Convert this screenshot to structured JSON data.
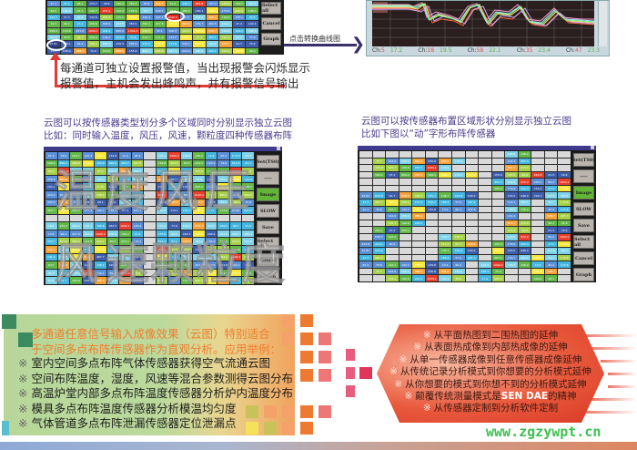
{
  "top_panel": {
    "alarm_note_lines": [
      "每通道可独立设置报警值，当出现报警会闪烁显示",
      "报警值，主机会发出蜂鸣声，并有报警信号输出"
    ],
    "link_text": "点击转换曲线图",
    "buttons": [
      "Select all",
      "Cancel",
      "Graph"
    ],
    "highlighted_cells": [
      "1040.2",
      "25.8C"
    ],
    "grid_values": [
      [
        "61.3",
        "97.1",
        "98.1",
        "105.7",
        "38.8",
        "299.4",
        "352.3",
        "78.8",
        "926.4",
        "31.4",
        "136.7",
        "964.8",
        "157.4",
        "148.8",
        "194.1",
        "252.9"
      ],
      [
        "63.5",
        "199.9",
        "61.3",
        "240.7",
        "972.2",
        "142.3",
        "195.9",
        "73.7",
        "640.2",
        "18.4",
        "185.4",
        "240.1",
        "798.4",
        "179.6",
        "164.6",
        "168.0"
      ],
      [
        "132.7",
        "57.4",
        "89.2",
        "139.8",
        "203.3",
        "105.2",
        "734.3",
        "436.4",
        "447.1",
        "1040.2",
        "13.4",
        "254.6",
        "886.9",
        "193.0",
        "135.1",
        "93.4"
      ],
      [
        "79.3",
        "96.4",
        "27.2",
        "256.8",
        "648.0",
        "199.8",
        "363.5",
        "390.1",
        "437.6",
        "774.6",
        "905.0",
        "209.7",
        "262.5",
        "119.1",
        "97.2",
        "192.4"
      ],
      [
        "258.4",
        "179.6",
        "427.6",
        "1009.1",
        "204.1",
        "400.0",
        "1099.2",
        "636.5",
        "55.1",
        "300.5",
        "129.2",
        "798.6",
        "930.3",
        "106.8",
        "194.0",
        "296.3"
      ],
      [
        "124.8",
        "58.6",
        "94.7",
        "308.4",
        "136.2",
        "424.2",
        "75.6",
        "424.1",
        "171.4",
        "173.6",
        "808.4",
        "13.4",
        "303.1",
        "101.4",
        "80.5",
        "77.6"
      ],
      [
        "25.8C",
        "179.1",
        "95.4",
        "296.2",
        "605.5",
        "229.3",
        "595.9",
        "625.6",
        "737.3",
        "173.6",
        "549.7",
        "807.1",
        "123.2",
        "873.7",
        "64.7",
        "75.6"
      ],
      [
        "47.3",
        "238.9",
        "928.7",
        "74.9",
        "473.0",
        "868.5",
        "155.6",
        "463.7",
        "290.8",
        "467.7",
        "512.4",
        "309.5",
        "325.1",
        "123.2",
        "720.6",
        "96.0"
      ]
    ]
  },
  "curve_chart": {
    "footer": [
      {
        "label": "Ch:",
        "ch": "5",
        "value": "17.2"
      },
      {
        "label": "Ch:",
        "ch": "18",
        "value": "19.5"
      },
      {
        "label": "Ch:",
        "ch": "58",
        "value": "22.1"
      },
      {
        "label": "Ch:",
        "ch": "35",
        "value": "23.4"
      },
      {
        "label": "Ch:",
        "ch": "47",
        "value": "23.3"
      }
    ],
    "y_ticks": [
      "25.0",
      "15.0",
      "5.0",
      "-5.0",
      "-15.0"
    ]
  },
  "left_cloud": {
    "title_lines": [
      "云图可以按传感器类型划分多个区域同时分别显示独立云图",
      "比如：同时输入温度，风压，风速，颗粒度四种传感器布阵"
    ],
    "watermarks": [
      "温度",
      "风压",
      "风速",
      "颗粒度"
    ],
    "buttons": [
      "Set(TS0)",
      "----",
      "Image",
      "SLOW",
      "Save",
      "Select all",
      "Cancel",
      "Graph"
    ]
  },
  "right_cloud": {
    "title_lines": [
      "云图可以按传感器布置区域形状分别显示独立云图",
      "比如下图以“动”字形布阵传感器"
    ],
    "buttons": [
      "Set(TS0)",
      "----",
      "Image",
      "SLOW",
      "Save",
      "Select all",
      "Cancel",
      "Graph"
    ]
  },
  "applications": {
    "heading_lines": [
      "多通道任意信号输入成像效果（云图）特别适合",
      "于空间多点布阵传感器作为直观分析。应用举例："
    ],
    "mark": "※",
    "items": [
      "室内空间多点布阵气体传感器获得空气流通云图",
      "空间布阵温度，湿度，风速等混合参数测得云图分布",
      "高温炉堂内部多点布阵温度传感器分析炉内温度分布",
      "模具多点布阵温度传感器分析模温均匀度",
      "气体管道多点布阵泄漏传感器定位泄漏点"
    ]
  },
  "features": {
    "mark": "※",
    "items": [
      {
        "pre": "从平面热图到二围热图的延伸",
        "brand": "",
        "post": ""
      },
      {
        "pre": "从表面热成像到内部热成像的延伸",
        "brand": "",
        "post": ""
      },
      {
        "pre": "从单一传感器成像到任意传感器成像延伸",
        "brand": "",
        "post": ""
      },
      {
        "pre": "从传统记录分析模式到你想要的分析模式延伸",
        "brand": "",
        "post": ""
      },
      {
        "pre": "从你想要的模式到你想不到的分析模式延伸",
        "brand": "",
        "post": ""
      },
      {
        "pre": "颠覆传统测量模式是",
        "brand": "SEN DAE",
        "post": "的精神"
      },
      {
        "pre": "从传感器定制到分析软件定制",
        "brand": "",
        "post": ""
      }
    ]
  },
  "watermark_url": "www.zgzywpt.cn",
  "colors": {
    "cell_palette": [
      "#3d5fae",
      "#5b8fd6",
      "#45b6e0",
      "#7fd2e8",
      "#62b84a",
      "#a6d04a",
      "#f5e83a",
      "#f3a33a",
      "#e8402e",
      "#2e3f86",
      "#d9d9d9"
    ],
    "title_purple": "#4c3a8c",
    "accent_orange": "#f07e2d",
    "url_green": "#3ec253"
  }
}
